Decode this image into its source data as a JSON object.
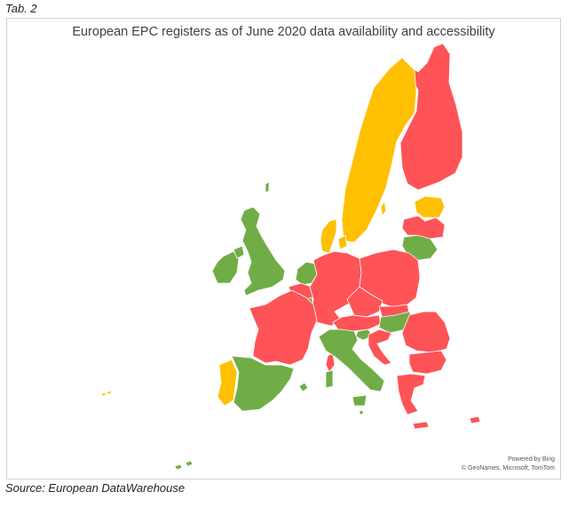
{
  "tab_label": "Tab. 2",
  "title": "European EPC registers as of June 2020 data availability and accessibility",
  "attribution": {
    "line1": "Powered by Bing",
    "line2": "© GeoNames, Microsoft, TomTom"
  },
  "source": "Source: European DataWarehouse",
  "colors": {
    "red": "#fe5357",
    "orange": "#fec000",
    "green": "#70ad47"
  },
  "regions": [
    {
      "name": "Finland",
      "status": "red"
    },
    {
      "name": "Sweden",
      "status": "orange"
    },
    {
      "name": "Estonia",
      "status": "orange"
    },
    {
      "name": "Latvia",
      "status": "red"
    },
    {
      "name": "Lithuania",
      "status": "green"
    },
    {
      "name": "Denmark",
      "status": "orange"
    },
    {
      "name": "Ireland",
      "status": "green"
    },
    {
      "name": "United Kingdom",
      "status": "green"
    },
    {
      "name": "Netherlands",
      "status": "green"
    },
    {
      "name": "Belgium",
      "status": "red"
    },
    {
      "name": "Luxembourg",
      "status": "green"
    },
    {
      "name": "Germany",
      "status": "red"
    },
    {
      "name": "Poland",
      "status": "red"
    },
    {
      "name": "Czech Republic",
      "status": "red"
    },
    {
      "name": "Slovakia",
      "status": "red"
    },
    {
      "name": "Austria",
      "status": "red"
    },
    {
      "name": "Hungary",
      "status": "green"
    },
    {
      "name": "Slovenia",
      "status": "green"
    },
    {
      "name": "Croatia",
      "status": "red"
    },
    {
      "name": "Romania",
      "status": "red"
    },
    {
      "name": "Bulgaria",
      "status": "red"
    },
    {
      "name": "France",
      "status": "red"
    },
    {
      "name": "Spain",
      "status": "green"
    },
    {
      "name": "Portugal",
      "status": "orange"
    },
    {
      "name": "Italy",
      "status": "green"
    },
    {
      "name": "Greece",
      "status": "red"
    },
    {
      "name": "Cyprus",
      "status": "red"
    },
    {
      "name": "Malta",
      "status": "green"
    }
  ]
}
